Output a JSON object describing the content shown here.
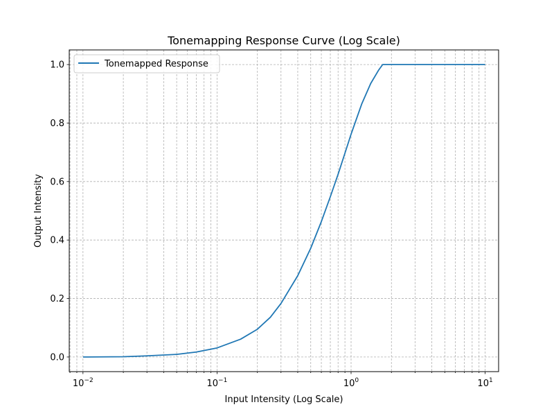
{
  "chart_data": {
    "type": "line",
    "title": "Tonemapping Response Curve (Log Scale)",
    "xlabel": "Input Intensity (Log Scale)",
    "ylabel": "Output Intensity",
    "x_scale": "log",
    "xlim": [
      0.0079,
      12.6
    ],
    "ylim": [
      -0.05,
      1.05
    ],
    "x_ticks": [
      {
        "value": 0.01,
        "base": "10",
        "exp": "−2"
      },
      {
        "value": 0.1,
        "base": "10",
        "exp": "−1"
      },
      {
        "value": 1,
        "base": "10",
        "exp": "0"
      },
      {
        "value": 10,
        "base": "10",
        "exp": "1"
      }
    ],
    "y_ticks": [
      {
        "value": 0.0,
        "label": "0.0"
      },
      {
        "value": 0.2,
        "label": "0.2"
      },
      {
        "value": 0.4,
        "label": "0.4"
      },
      {
        "value": 0.6,
        "label": "0.6"
      },
      {
        "value": 0.8,
        "label": "0.8"
      },
      {
        "value": 1.0,
        "label": "1.0"
      }
    ],
    "grid": true,
    "legend_position": "top-left",
    "series": [
      {
        "name": "Tonemapped Response",
        "color": "#1f77b4",
        "points": [
          [
            0.01,
            0.0
          ],
          [
            0.02,
            0.001
          ],
          [
            0.03,
            0.004
          ],
          [
            0.05,
            0.009
          ],
          [
            0.07,
            0.017
          ],
          [
            0.1,
            0.031
          ],
          [
            0.15,
            0.061
          ],
          [
            0.2,
            0.095
          ],
          [
            0.25,
            0.136
          ],
          [
            0.3,
            0.183
          ],
          [
            0.4,
            0.278
          ],
          [
            0.5,
            0.372
          ],
          [
            0.6,
            0.463
          ],
          [
            0.7,
            0.548
          ],
          [
            0.8,
            0.625
          ],
          [
            0.9,
            0.697
          ],
          [
            1.0,
            0.762
          ],
          [
            1.2,
            0.865
          ],
          [
            1.4,
            0.935
          ],
          [
            1.6,
            0.98
          ],
          [
            1.72,
            1.0
          ],
          [
            2.0,
            1.0
          ],
          [
            5.0,
            1.0
          ],
          [
            10.0,
            1.0
          ]
        ]
      }
    ]
  }
}
